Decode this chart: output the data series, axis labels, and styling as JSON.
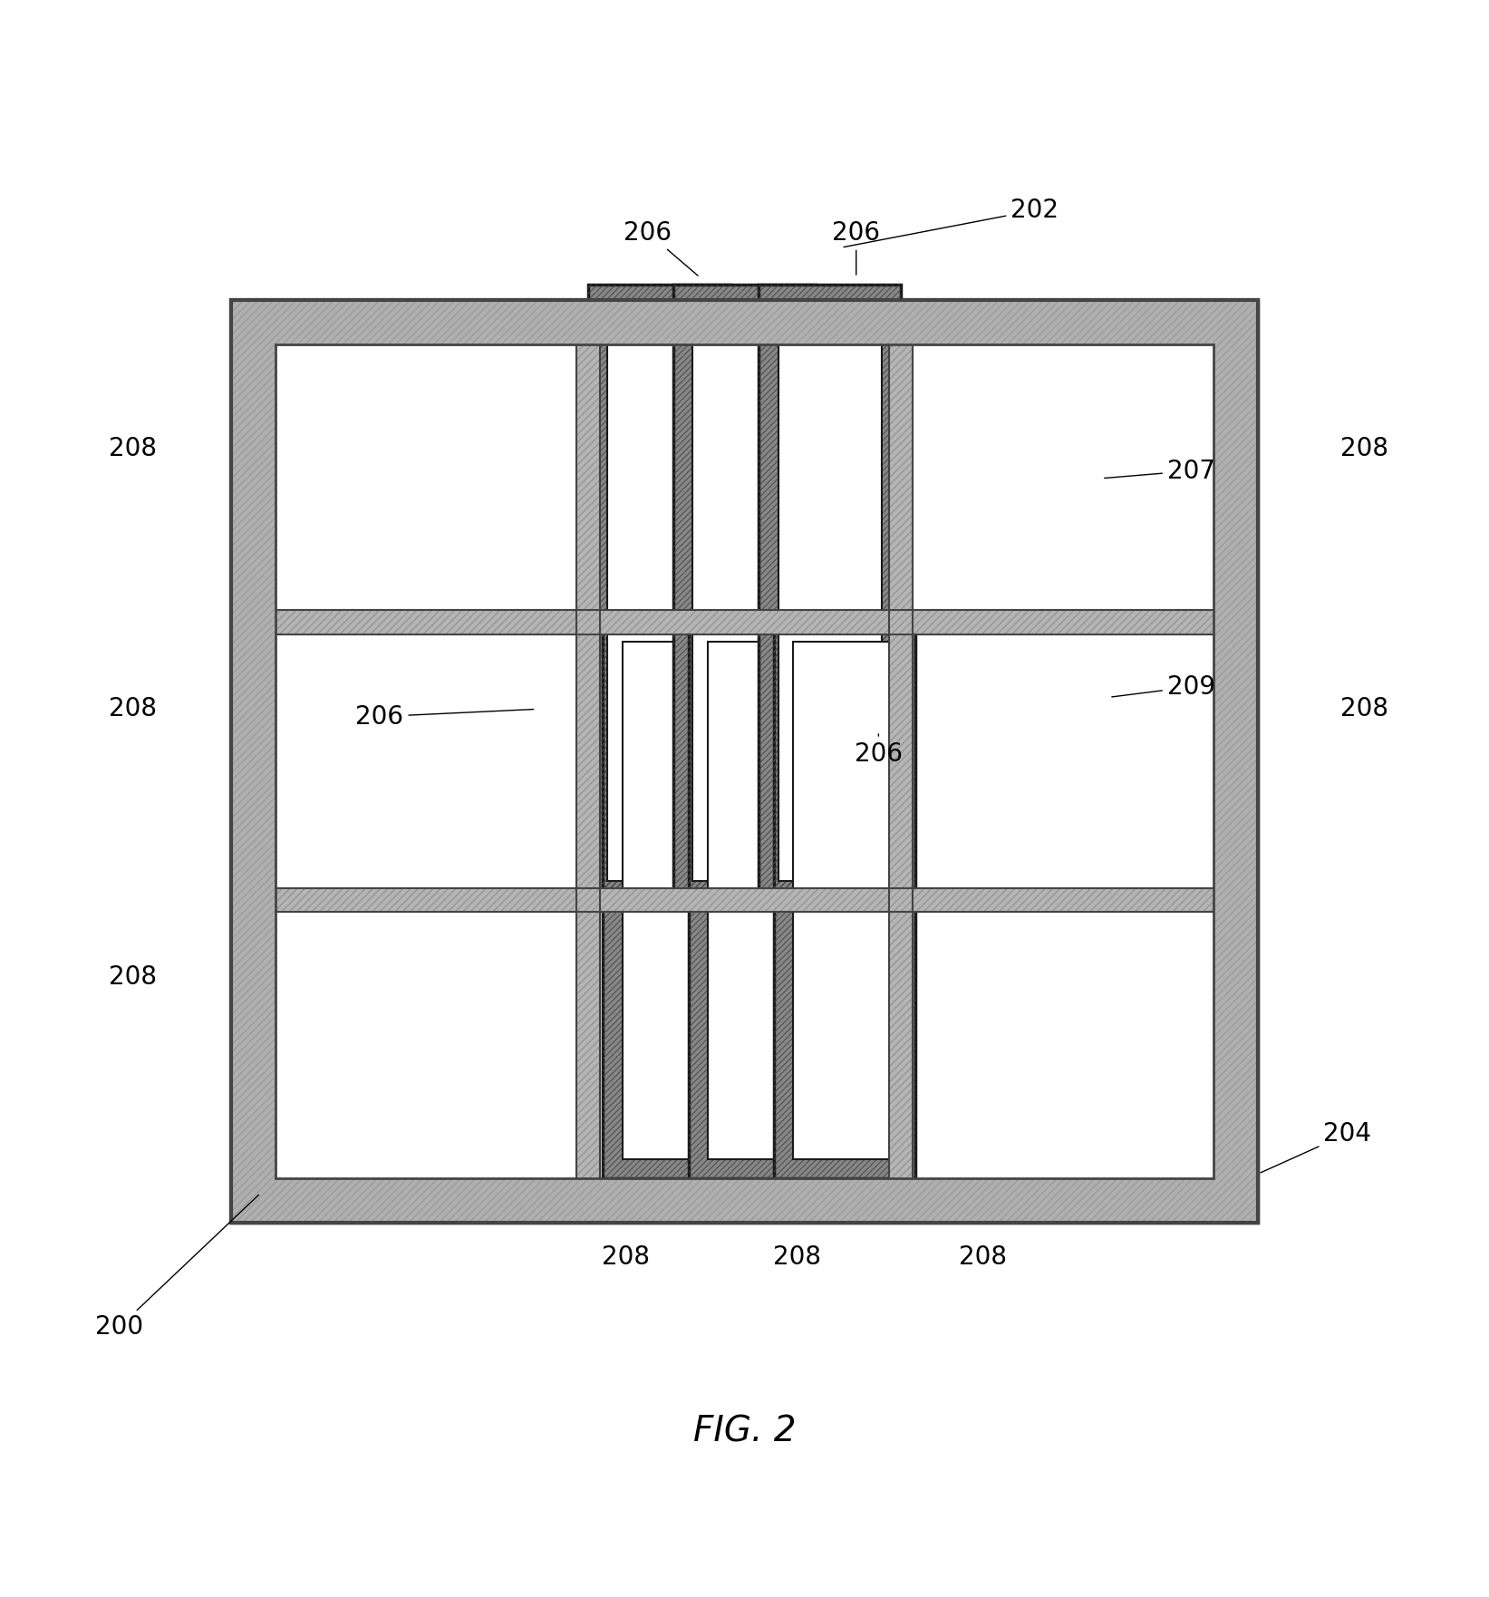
{
  "bg_color": "#ffffff",
  "fig_width": 16.43,
  "fig_height": 17.62,
  "title": "FIG. 2",
  "frame_color": "#888888",
  "frame_dark": "#444444",
  "frame_light": "#bbbbbb",
  "coil_dark": "#222222",
  "coil_mid": "#666666",
  "coil_hatch": "#555555",
  "grid_bar_color": "#999999"
}
